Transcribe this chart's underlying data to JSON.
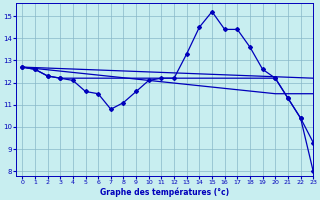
{
  "line1_x": [
    0,
    1,
    2,
    3,
    4,
    5,
    6,
    7,
    8,
    9,
    10,
    11,
    12,
    13,
    14,
    15,
    16,
    17,
    18,
    19,
    20,
    21,
    22,
    23
  ],
  "line1_y": [
    12.7,
    12.6,
    12.3,
    12.2,
    12.1,
    11.6,
    11.5,
    10.8,
    11.1,
    11.6,
    12.1,
    12.2,
    12.2,
    13.3,
    14.5,
    15.2,
    14.4,
    14.4,
    13.6,
    12.6,
    12.2,
    11.3,
    10.4,
    9.3
  ],
  "line2_x": [
    0,
    23
  ],
  "line2_y": [
    12.7,
    12.2
  ],
  "line3_x": [
    0,
    20,
    23
  ],
  "line3_y": [
    12.7,
    11.5,
    11.5
  ],
  "line4_x": [
    0,
    1,
    2,
    3,
    20,
    21,
    22,
    23
  ],
  "line4_y": [
    12.7,
    12.6,
    12.3,
    12.2,
    12.2,
    11.3,
    10.4,
    8.0
  ],
  "line_color": "#0000bb",
  "bg_color": "#c8eef0",
  "grid_color": "#88b8c8",
  "xlabel": "Graphe des températures (°c)",
  "xlim": [
    -0.5,
    23
  ],
  "ylim": [
    7.8,
    15.6
  ],
  "yticks": [
    8,
    9,
    10,
    11,
    12,
    13,
    14,
    15
  ],
  "xticks": [
    0,
    1,
    2,
    3,
    4,
    5,
    6,
    7,
    8,
    9,
    10,
    11,
    12,
    13,
    14,
    15,
    16,
    17,
    18,
    19,
    20,
    21,
    22,
    23
  ]
}
